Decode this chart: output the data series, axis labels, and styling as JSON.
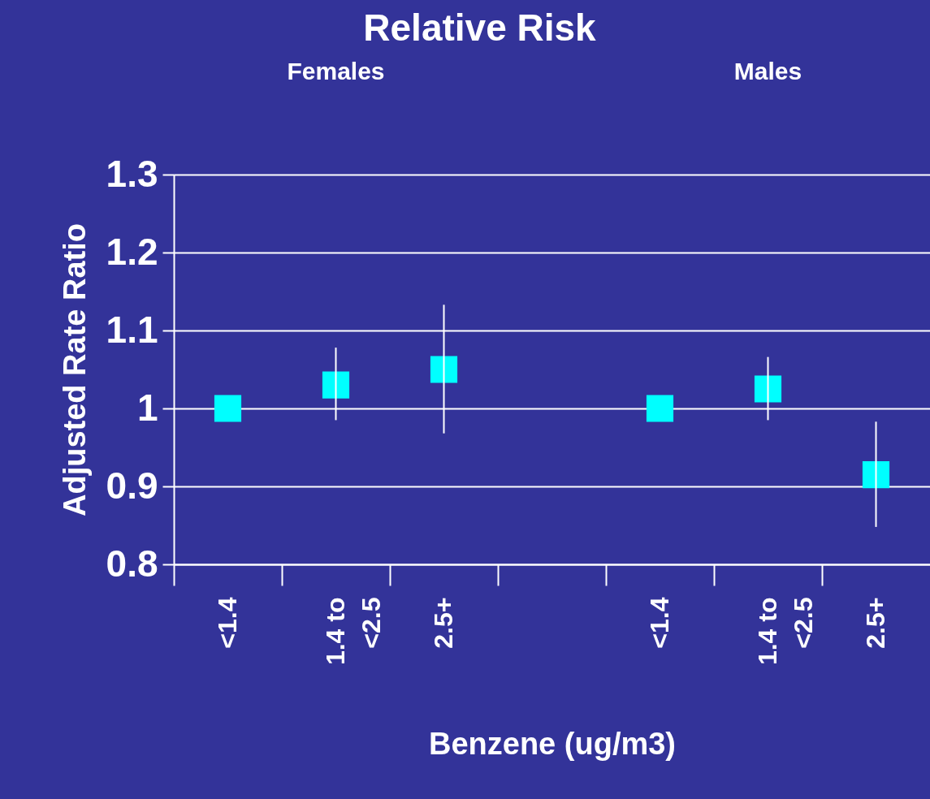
{
  "chart_data": {
    "type": "scatter",
    "title": "Relative Risk",
    "xlabel": "Benzene (ug/m3)",
    "ylabel": "Adjusted Rate Ratio",
    "annotations": [
      "Females",
      "Males"
    ],
    "categories": [
      "<1.4",
      "1.4 to <2.5",
      "2.5+",
      null,
      "<1.4",
      "1.4 to <2.5",
      "2.5+"
    ],
    "series": [
      {
        "color": "#00ffff",
        "values": [
          1.0,
          1.03,
          1.05,
          null,
          1.0,
          1.025,
          0.915
        ],
        "errors": [
          null,
          [
            0.985,
            1.078
          ],
          [
            0.968,
            1.133
          ],
          null,
          null,
          [
            0.985,
            1.066
          ],
          [
            0.848,
            0.983
          ]
        ]
      }
    ],
    "ylim": [
      0.8,
      1.3
    ],
    "yticks": [
      0.8,
      0.9,
      1,
      1.1,
      1.2,
      1.3
    ],
    "grid": "y",
    "marker": "square"
  }
}
